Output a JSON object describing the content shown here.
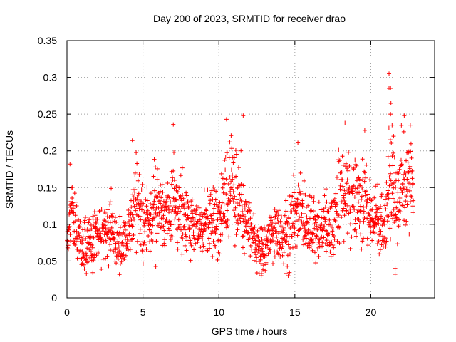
{
  "chart_data": {
    "type": "scatter",
    "title": "Day 200 of 2023, SRMTID for receiver drao",
    "xlabel": "GPS time / hours",
    "ylabel": "SRMTID / TECUs",
    "xlim": [
      0,
      24.2
    ],
    "ylim": [
      0,
      0.35
    ],
    "grid": true,
    "marker": "+",
    "color": "#ff0000",
    "xticks": [
      0,
      5,
      10,
      15,
      20
    ],
    "xtick_labels": [
      "0",
      "5",
      "10",
      "15",
      "20"
    ],
    "yticks": [
      0,
      0.05,
      0.1,
      0.15,
      0.2,
      0.25,
      0.3,
      0.35
    ],
    "ytick_labels": [
      "0",
      "0.05",
      "0.1",
      "0.15",
      "0.2",
      "0.25",
      "0.3",
      "0.35"
    ],
    "series": [
      {
        "name": "SRMTID",
        "trend": [
          [
            0.0,
            0.07,
            0.02
          ],
          [
            0.3,
            0.13,
            0.025
          ],
          [
            0.6,
            0.09,
            0.025
          ],
          [
            1.0,
            0.07,
            0.02
          ],
          [
            1.5,
            0.075,
            0.02
          ],
          [
            2.0,
            0.085,
            0.02
          ],
          [
            2.5,
            0.09,
            0.02
          ],
          [
            3.0,
            0.085,
            0.025
          ],
          [
            3.5,
            0.07,
            0.02
          ],
          [
            4.0,
            0.08,
            0.02
          ],
          [
            4.5,
            0.13,
            0.035
          ],
          [
            5.0,
            0.1,
            0.03
          ],
          [
            5.5,
            0.11,
            0.03
          ],
          [
            6.0,
            0.13,
            0.035
          ],
          [
            6.5,
            0.11,
            0.03
          ],
          [
            7.0,
            0.13,
            0.035
          ],
          [
            7.5,
            0.12,
            0.03
          ],
          [
            8.0,
            0.1,
            0.025
          ],
          [
            8.5,
            0.09,
            0.025
          ],
          [
            9.0,
            0.1,
            0.025
          ],
          [
            9.5,
            0.11,
            0.03
          ],
          [
            10.0,
            0.1,
            0.03
          ],
          [
            10.5,
            0.15,
            0.035
          ],
          [
            11.0,
            0.14,
            0.035
          ],
          [
            11.5,
            0.13,
            0.03
          ],
          [
            12.0,
            0.1,
            0.025
          ],
          [
            12.5,
            0.065,
            0.02
          ],
          [
            13.0,
            0.06,
            0.02
          ],
          [
            13.5,
            0.09,
            0.02
          ],
          [
            14.0,
            0.08,
            0.02
          ],
          [
            14.5,
            0.085,
            0.025
          ],
          [
            15.0,
            0.11,
            0.03
          ],
          [
            15.5,
            0.12,
            0.03
          ],
          [
            16.0,
            0.1,
            0.025
          ],
          [
            16.5,
            0.085,
            0.02
          ],
          [
            17.0,
            0.095,
            0.025
          ],
          [
            17.5,
            0.1,
            0.025
          ],
          [
            18.0,
            0.13,
            0.035
          ],
          [
            18.5,
            0.14,
            0.035
          ],
          [
            19.0,
            0.12,
            0.03
          ],
          [
            19.5,
            0.13,
            0.035
          ],
          [
            20.0,
            0.11,
            0.025
          ],
          [
            20.5,
            0.1,
            0.025
          ],
          [
            21.0,
            0.09,
            0.03
          ],
          [
            21.3,
            0.17,
            0.05
          ],
          [
            21.6,
            0.11,
            0.03
          ],
          [
            22.0,
            0.15,
            0.035
          ],
          [
            22.5,
            0.16,
            0.035
          ],
          [
            22.8,
            0.15,
            0.03
          ]
        ],
        "outliers": [
          [
            21.2,
            0.305
          ],
          [
            21.2,
            0.285
          ],
          [
            21.3,
            0.285
          ],
          [
            21.3,
            0.25
          ],
          [
            21.4,
            0.235
          ],
          [
            21.5,
            0.22
          ],
          [
            21.6,
            0.04
          ],
          [
            21.6,
            0.032
          ],
          [
            22.2,
            0.248
          ],
          [
            22.6,
            0.235
          ],
          [
            11.6,
            0.248
          ],
          [
            10.5,
            0.243
          ],
          [
            7.0,
            0.236
          ],
          [
            18.3,
            0.238
          ],
          [
            19.6,
            0.228
          ],
          [
            4.3,
            0.214
          ],
          [
            15.2,
            0.211
          ],
          [
            0.2,
            0.182
          ],
          [
            12.8,
            0.033
          ],
          [
            12.9,
            0.038
          ]
        ]
      }
    ]
  }
}
